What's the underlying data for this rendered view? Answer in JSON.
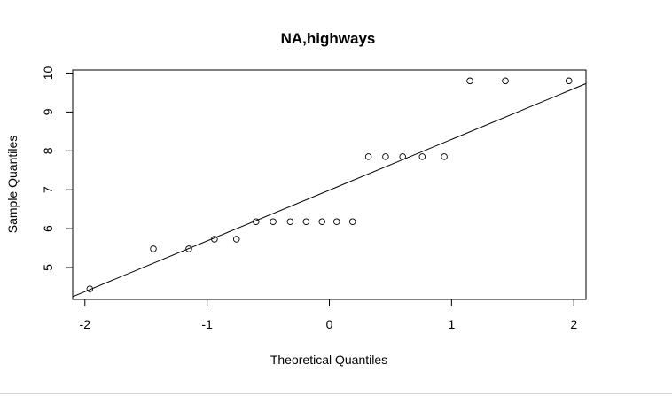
{
  "chart_data": {
    "type": "scatter",
    "title": "NA,highways",
    "xlabel": "Theoretical Quantiles",
    "ylabel": "Sample Quantiles",
    "xlim": [
      -2.1,
      2.1
    ],
    "ylim": [
      4.18,
      10.08
    ],
    "x_ticks": [
      -2,
      -1,
      0,
      1,
      2
    ],
    "x_tick_labels": [
      "-2",
      "-1",
      "0",
      "1",
      "2"
    ],
    "y_ticks": [
      5,
      6,
      7,
      8,
      9,
      10
    ],
    "y_tick_labels": [
      "5",
      "6",
      "7",
      "8",
      "9",
      "10"
    ],
    "grid": false,
    "legend": "none",
    "reference_line": {
      "x": [
        -2.1,
        2.1
      ],
      "y": [
        4.25,
        9.73
      ]
    },
    "series": [
      {
        "points": [
          {
            "x": -1.96,
            "y": 4.45
          },
          {
            "x": -1.44,
            "y": 5.48
          },
          {
            "x": -1.15,
            "y": 5.48
          },
          {
            "x": -0.94,
            "y": 5.73
          },
          {
            "x": -0.76,
            "y": 5.73
          },
          {
            "x": -0.6,
            "y": 6.18
          },
          {
            "x": -0.46,
            "y": 6.18
          },
          {
            "x": -0.32,
            "y": 6.18
          },
          {
            "x": -0.19,
            "y": 6.18
          },
          {
            "x": -0.06,
            "y": 6.18
          },
          {
            "x": 0.06,
            "y": 6.18
          },
          {
            "x": 0.19,
            "y": 6.18
          },
          {
            "x": 0.32,
            "y": 7.85
          },
          {
            "x": 0.46,
            "y": 7.85
          },
          {
            "x": 0.6,
            "y": 7.85
          },
          {
            "x": 0.76,
            "y": 7.85
          },
          {
            "x": 0.94,
            "y": 7.85
          },
          {
            "x": 1.15,
            "y": 9.8
          },
          {
            "x": 1.44,
            "y": 9.8
          },
          {
            "x": 1.96,
            "y": 9.8
          }
        ]
      }
    ]
  }
}
